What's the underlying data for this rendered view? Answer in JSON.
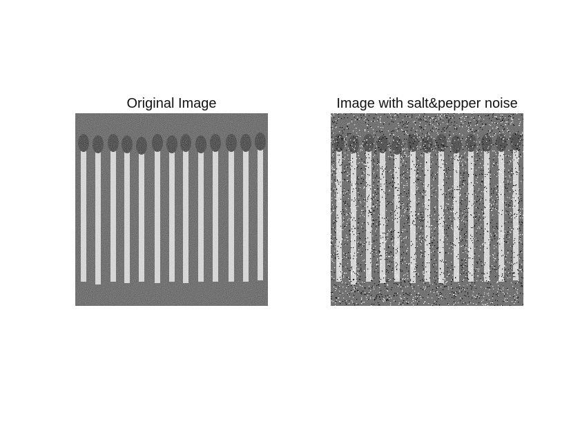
{
  "figure": {
    "panels": [
      {
        "title": "Original Image",
        "image": "photo-of-matchsticks-grayscale",
        "noise": false
      },
      {
        "title": "Image with salt&pepper noise",
        "image": "photo-of-matchsticks-grayscale-noisy",
        "noise": true
      }
    ],
    "matchstick_count": 13,
    "colors": {
      "background": "#5a5a5a",
      "stick": "#dcdcdc",
      "head": "#1e1e1e"
    }
  }
}
